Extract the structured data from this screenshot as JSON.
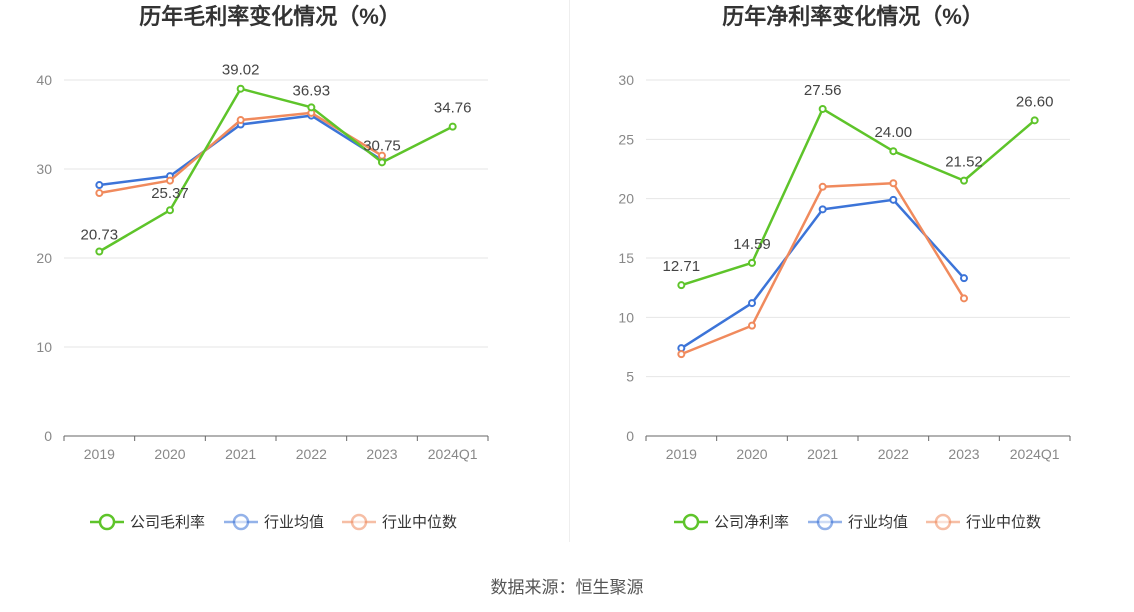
{
  "source": "数据来源：恒生聚源",
  "chart_data": [
    {
      "type": "line",
      "title": "历年毛利率变化情况（%）",
      "categories": [
        "2019",
        "2020",
        "2021",
        "2022",
        "2023",
        "2024Q1"
      ],
      "ylim": [
        0,
        40
      ],
      "yticks": [
        "0",
        "10",
        "20",
        "30",
        "40"
      ],
      "grid": true,
      "legend": "bottom-center",
      "series": [
        {
          "name": "公司毛利率",
          "color": "#5ec42a",
          "values": [
            20.73,
            25.37,
            39.02,
            36.93,
            30.75,
            34.76
          ],
          "labels": [
            "20.73",
            "25.37",
            "39.02",
            "36.93",
            "30.75",
            "34.76"
          ]
        },
        {
          "name": "行业均值",
          "color": "#3c74d8",
          "values": [
            28.2,
            29.2,
            35.0,
            36.0,
            31.0,
            null
          ]
        },
        {
          "name": "行业中位数",
          "color": "#f08a5d",
          "values": [
            27.3,
            28.7,
            35.5,
            36.3,
            31.5,
            null
          ]
        }
      ]
    },
    {
      "type": "line",
      "title": "历年净利率变化情况（%）",
      "categories": [
        "2019",
        "2020",
        "2021",
        "2022",
        "2023",
        "2024Q1"
      ],
      "ylim": [
        0,
        30
      ],
      "yticks": [
        "0",
        "5",
        "10",
        "15",
        "20",
        "25",
        "30"
      ],
      "grid": true,
      "legend": "bottom-center",
      "series": [
        {
          "name": "公司净利率",
          "color": "#5ec42a",
          "values": [
            12.71,
            14.59,
            27.56,
            24.0,
            21.52,
            26.6
          ],
          "labels": [
            "12.71",
            "14.59",
            "27.56",
            "24.00",
            "21.52",
            "26.60"
          ]
        },
        {
          "name": "行业均值",
          "color": "#3c74d8",
          "values": [
            7.4,
            11.2,
            19.1,
            19.9,
            13.3,
            null
          ]
        },
        {
          "name": "行业中位数",
          "color": "#f08a5d",
          "values": [
            6.9,
            9.3,
            21.0,
            21.3,
            11.6,
            null
          ]
        }
      ]
    }
  ]
}
